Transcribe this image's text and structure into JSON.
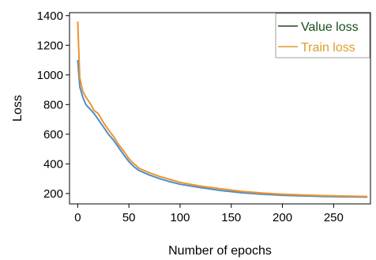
{
  "chart_data": {
    "type": "line",
    "title": "",
    "xlabel": "Number of epochs",
    "ylabel": "Loss",
    "xlim": [
      -8,
      286
    ],
    "ylim": [
      130,
      1420
    ],
    "xticks": [
      0,
      50,
      100,
      150,
      200,
      250
    ],
    "yticks": [
      200,
      400,
      600,
      800,
      1000,
      1200,
      1400
    ],
    "grid": false,
    "legend": "top-right",
    "series": [
      {
        "name": "Value loss",
        "legend_color": "#1a4d1a",
        "color": "#4a8fcc",
        "x": [
          0,
          2,
          5,
          8,
          12,
          16,
          20,
          25,
          30,
          35,
          40,
          45,
          50,
          55,
          60,
          70,
          80,
          90,
          100,
          120,
          140,
          160,
          180,
          200,
          220,
          240,
          260,
          283
        ],
        "y": [
          1100,
          920,
          850,
          800,
          770,
          740,
          700,
          650,
          600,
          560,
          510,
          460,
          415,
          380,
          355,
          325,
          300,
          280,
          262,
          240,
          220,
          205,
          195,
          188,
          184,
          180,
          178,
          176
        ]
      },
      {
        "name": "Train loss",
        "legend_color": "#e09b2d",
        "color": "#f0932b",
        "x": [
          0,
          2,
          5,
          8,
          12,
          16,
          20,
          25,
          30,
          35,
          40,
          45,
          50,
          55,
          60,
          70,
          80,
          90,
          100,
          120,
          140,
          160,
          180,
          200,
          220,
          240,
          260,
          283
        ],
        "y": [
          1360,
          980,
          890,
          850,
          810,
          760,
          740,
          680,
          630,
          585,
          530,
          485,
          435,
          400,
          370,
          340,
          315,
          295,
          275,
          250,
          232,
          215,
          203,
          195,
          190,
          186,
          183,
          180
        ]
      }
    ]
  }
}
